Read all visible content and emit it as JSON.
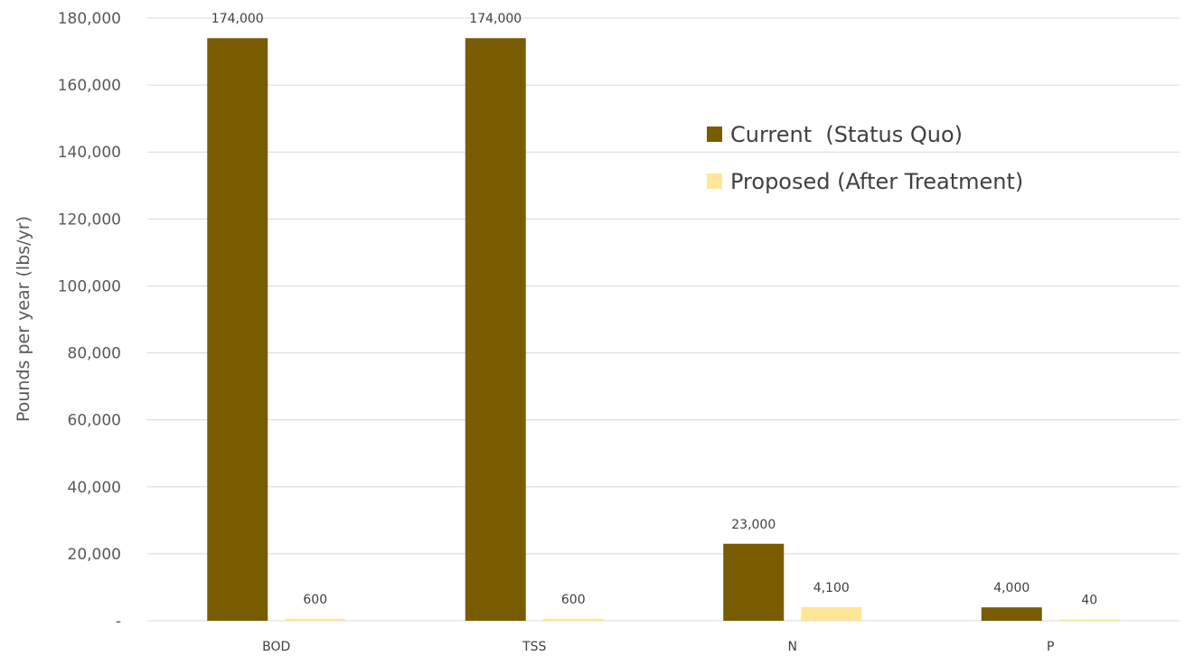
{
  "chart_data": {
    "type": "bar",
    "categories": [
      "BOD",
      "TSS",
      "N",
      "P"
    ],
    "series": [
      {
        "name": "Current  (Status Quo)",
        "color": "#7a5c00",
        "values": [
          174000,
          174000,
          23000,
          4000
        ],
        "labels": [
          "174,000",
          "174,000",
          "23,000",
          "4,000"
        ]
      },
      {
        "name": "Proposed (After Treatment)",
        "color": "#ffe699",
        "values": [
          600,
          600,
          4100,
          40
        ],
        "labels": [
          "600",
          "600",
          "4,100",
          "40"
        ]
      }
    ],
    "title": "",
    "xlabel": "",
    "ylabel": "Pounds per year (lbs/yr)",
    "ylim": [
      0,
      180000
    ],
    "yticks": [
      0,
      20000,
      40000,
      60000,
      80000,
      100000,
      120000,
      140000,
      160000,
      180000
    ],
    "ytick_labels": [
      "-",
      "20,000",
      "40,000",
      "60,000",
      "80,000",
      "100,000",
      "120,000",
      "140,000",
      "160,000",
      "180,000"
    ],
    "grid": true,
    "legend": "top-right-inside"
  }
}
